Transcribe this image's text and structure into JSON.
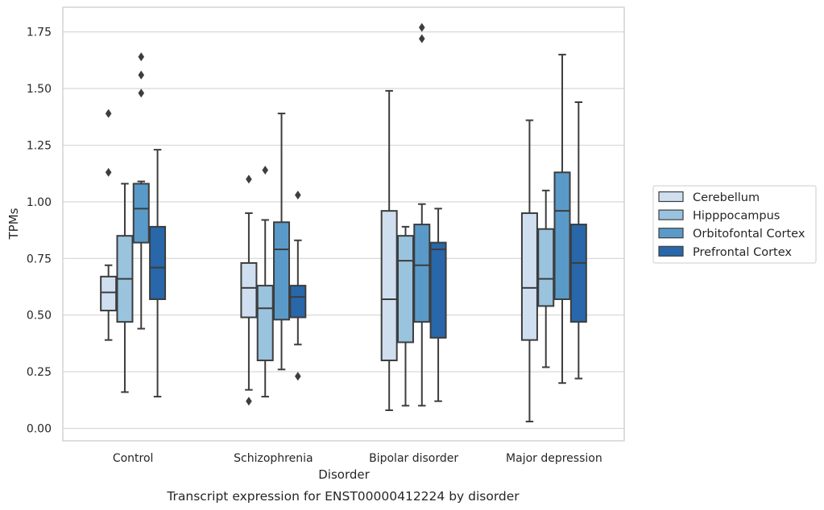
{
  "chart_data": {
    "type": "boxplot",
    "xlabel": "Disorder",
    "ylabel": "TPMs",
    "caption": "Transcript expression for ENST00000412224 by disorder",
    "ylim": [
      -0.05,
      1.86
    ],
    "yticks": [
      "0.00",
      "0.25",
      "0.50",
      "0.75",
      "1.00",
      "1.25",
      "1.50",
      "1.75"
    ],
    "grid": "horizontal",
    "legend_position": "right",
    "categories": [
      "Control",
      "Schizophrenia",
      "Bipolar disorder",
      "Major depression"
    ],
    "series": [
      {
        "name": "Cerebellum",
        "color": "#cfdfef",
        "boxes": [
          {
            "whislo": 0.39,
            "q1": 0.52,
            "med": 0.6,
            "q3": 0.67,
            "whishi": 0.72,
            "fliers": [
              1.13,
              1.39
            ]
          },
          {
            "whislo": 0.17,
            "q1": 0.49,
            "med": 0.62,
            "q3": 0.73,
            "whishi": 0.95,
            "fliers": [
              0.12,
              1.1
            ]
          },
          {
            "whislo": 0.08,
            "q1": 0.3,
            "med": 0.57,
            "q3": 0.96,
            "whishi": 1.49,
            "fliers": []
          },
          {
            "whislo": 0.03,
            "q1": 0.39,
            "med": 0.62,
            "q3": 0.95,
            "whishi": 1.36,
            "fliers": []
          }
        ]
      },
      {
        "name": "Hipppocampus",
        "color": "#9ac3de",
        "boxes": [
          {
            "whislo": 0.16,
            "q1": 0.47,
            "med": 0.66,
            "q3": 0.85,
            "whishi": 1.08,
            "fliers": []
          },
          {
            "whislo": 0.14,
            "q1": 0.3,
            "med": 0.53,
            "q3": 0.63,
            "whishi": 0.92,
            "fliers": [
              1.14
            ]
          },
          {
            "whislo": 0.1,
            "q1": 0.38,
            "med": 0.74,
            "q3": 0.85,
            "whishi": 0.89,
            "fliers": []
          },
          {
            "whislo": 0.27,
            "q1": 0.54,
            "med": 0.66,
            "q3": 0.88,
            "whishi": 1.05,
            "fliers": []
          }
        ]
      },
      {
        "name": "Orbitofontal Cortex",
        "color": "#5a9ac9",
        "boxes": [
          {
            "whislo": 0.44,
            "q1": 0.82,
            "med": 0.97,
            "q3": 1.08,
            "whishi": 1.09,
            "fliers": [
              1.48,
              1.56,
              1.64
            ]
          },
          {
            "whislo": 0.26,
            "q1": 0.48,
            "med": 0.79,
            "q3": 0.91,
            "whishi": 1.39,
            "fliers": []
          },
          {
            "whislo": 0.1,
            "q1": 0.47,
            "med": 0.72,
            "q3": 0.9,
            "whishi": 0.99,
            "fliers": [
              1.72,
              1.77
            ]
          },
          {
            "whislo": 0.2,
            "q1": 0.57,
            "med": 0.96,
            "q3": 1.13,
            "whishi": 1.65,
            "fliers": []
          }
        ]
      },
      {
        "name": "Prefrontal Cortex",
        "color": "#2767aa",
        "boxes": [
          {
            "whislo": 0.14,
            "q1": 0.57,
            "med": 0.71,
            "q3": 0.89,
            "whishi": 1.23,
            "fliers": []
          },
          {
            "whislo": 0.37,
            "q1": 0.49,
            "med": 0.58,
            "q3": 0.63,
            "whishi": 0.83,
            "fliers": [
              0.23,
              1.03
            ]
          },
          {
            "whislo": 0.12,
            "q1": 0.4,
            "med": 0.79,
            "q3": 0.82,
            "whishi": 0.97,
            "fliers": []
          },
          {
            "whislo": 0.22,
            "q1": 0.47,
            "med": 0.73,
            "q3": 0.9,
            "whishi": 1.44,
            "fliers": []
          }
        ]
      }
    ]
  }
}
